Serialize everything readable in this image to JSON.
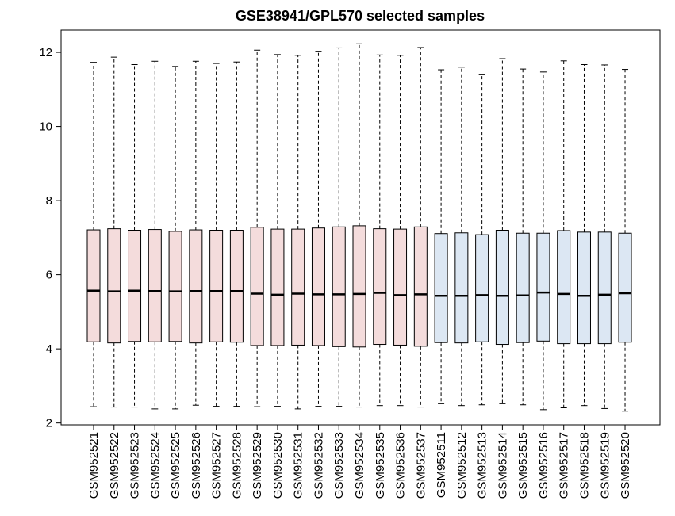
{
  "chart_data": {
    "type": "boxplot",
    "title": "GSE38941/GPL570 selected samples",
    "xlabel": "",
    "ylabel": "",
    "ylim": [
      1.95,
      12.6
    ],
    "yticks": [
      2,
      4,
      6,
      8,
      10,
      12
    ],
    "grid": false,
    "legend": "none",
    "colors": {
      "group_a": "#f4dcdc",
      "group_b": "#dce7f3",
      "stroke": "#000000"
    },
    "categories": [
      "GSM952521",
      "GSM952522",
      "GSM952523",
      "GSM952524",
      "GSM952525",
      "GSM952526",
      "GSM952527",
      "GSM952528",
      "GSM952529",
      "GSM952530",
      "GSM952531",
      "GSM952532",
      "GSM952533",
      "GSM952534",
      "GSM952535",
      "GSM952536",
      "GSM952537",
      "GSM952511",
      "GSM952512",
      "GSM952513",
      "GSM952514",
      "GSM952515",
      "GSM952516",
      "GSM952517",
      "GSM952518",
      "GSM952519",
      "GSM952520"
    ],
    "groups": [
      "a",
      "a",
      "a",
      "a",
      "a",
      "a",
      "a",
      "a",
      "a",
      "a",
      "a",
      "a",
      "a",
      "a",
      "a",
      "a",
      "a",
      "b",
      "b",
      "b",
      "b",
      "b",
      "b",
      "b",
      "b",
      "b",
      "b"
    ],
    "min": [
      2.44,
      2.43,
      2.43,
      2.38,
      2.38,
      2.48,
      2.45,
      2.45,
      2.44,
      2.45,
      2.38,
      2.45,
      2.45,
      2.43,
      2.47,
      2.47,
      2.43,
      2.52,
      2.47,
      2.49,
      2.52,
      2.49,
      2.36,
      2.41,
      2.47,
      2.39,
      2.32
    ],
    "q1": [
      4.19,
      4.16,
      4.2,
      4.19,
      4.2,
      4.16,
      4.19,
      4.18,
      4.09,
      4.09,
      4.1,
      4.09,
      4.06,
      4.05,
      4.12,
      4.1,
      4.07,
      4.17,
      4.16,
      4.19,
      4.12,
      4.17,
      4.21,
      4.14,
      4.14,
      4.14,
      4.18
    ],
    "median": [
      5.57,
      5.55,
      5.57,
      5.56,
      5.55,
      5.56,
      5.56,
      5.56,
      5.49,
      5.46,
      5.49,
      5.47,
      5.47,
      5.48,
      5.51,
      5.45,
      5.47,
      5.43,
      5.43,
      5.45,
      5.43,
      5.44,
      5.52,
      5.48,
      5.43,
      5.46,
      5.5
    ],
    "q3": [
      7.21,
      7.24,
      7.2,
      7.22,
      7.17,
      7.21,
      7.2,
      7.2,
      7.28,
      7.23,
      7.23,
      7.26,
      7.29,
      7.32,
      7.24,
      7.23,
      7.29,
      7.11,
      7.13,
      7.08,
      7.2,
      7.12,
      7.12,
      7.19,
      7.15,
      7.15,
      7.12
    ],
    "max": [
      11.73,
      11.87,
      11.67,
      11.76,
      11.62,
      11.76,
      11.7,
      11.74,
      12.06,
      11.94,
      11.92,
      12.03,
      12.12,
      12.23,
      11.93,
      11.92,
      12.13,
      11.53,
      11.6,
      11.41,
      11.83,
      11.55,
      11.47,
      11.77,
      11.67,
      11.66,
      11.54
    ]
  }
}
